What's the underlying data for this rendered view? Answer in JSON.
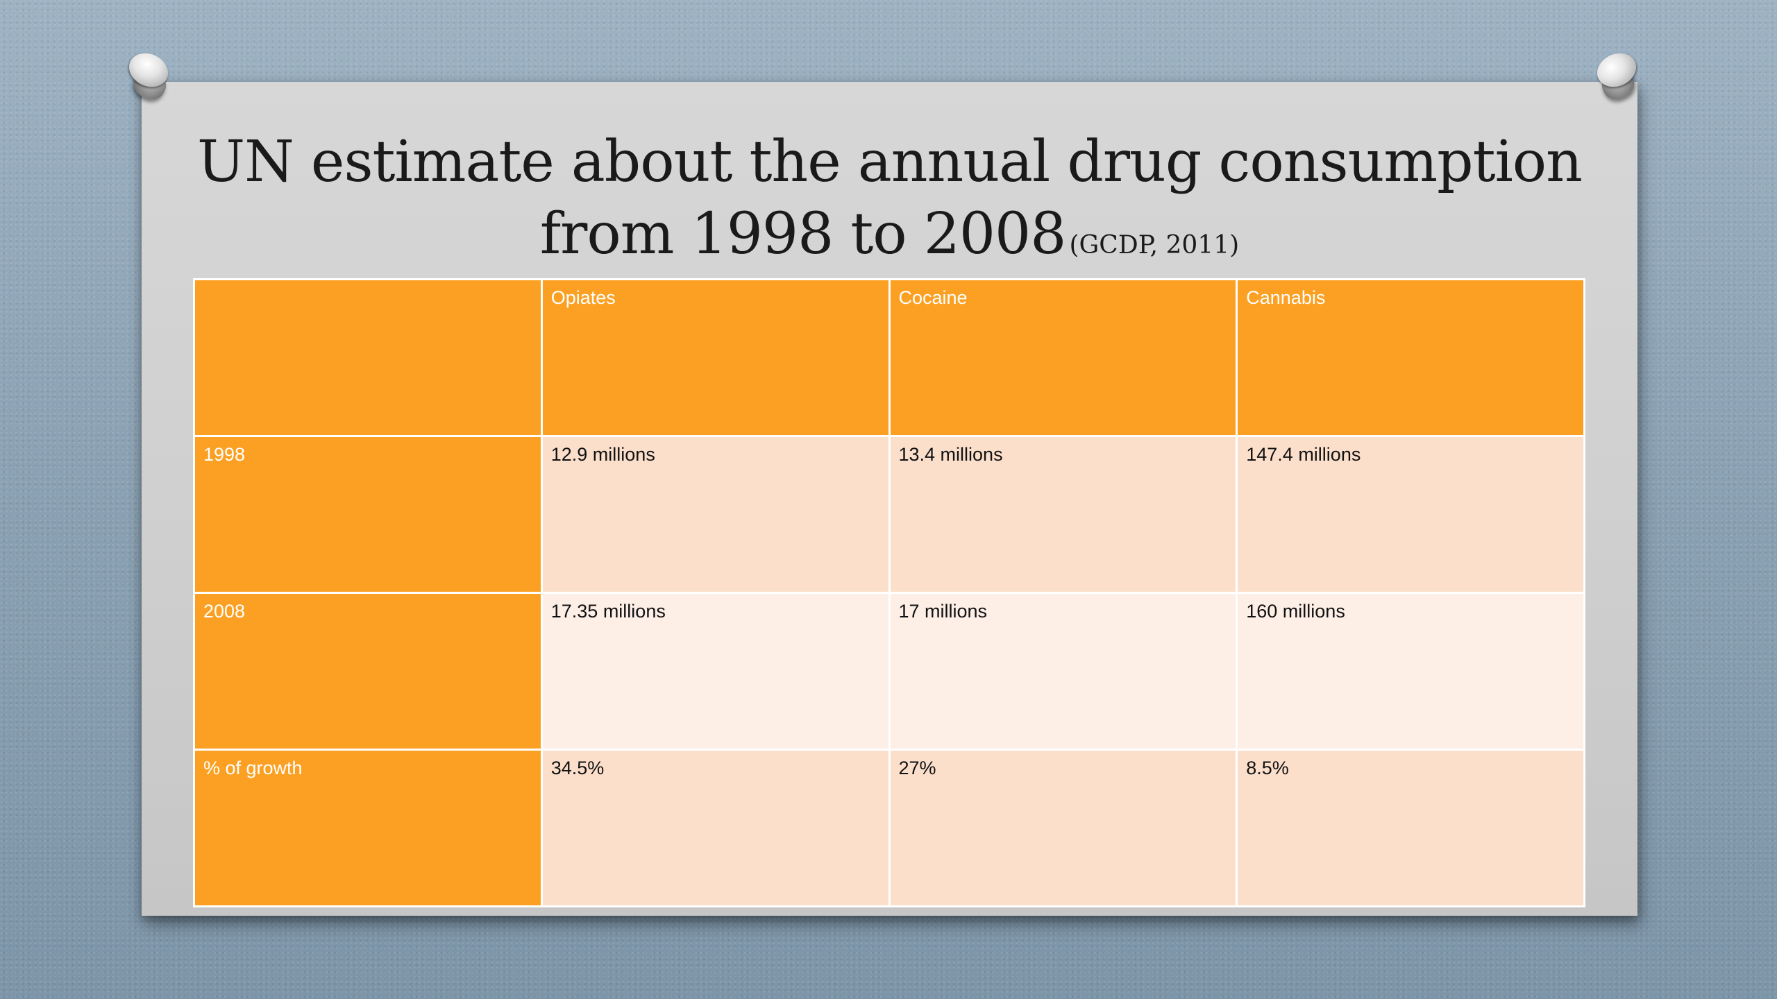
{
  "title": {
    "main_line1": "UN estimate about the annual drug consumption",
    "main_line2": "from 1998 to 2008",
    "source": "(GCDP, 2011)"
  },
  "table": {
    "columns": [
      "",
      "Opiates",
      "Cocaine",
      "Cannabis"
    ],
    "rows": [
      {
        "label": "1998",
        "values": [
          "12.9 millions",
          "13.4 millions",
          "147.4 millions"
        ]
      },
      {
        "label": "2008",
        "values": [
          "17.35 millions",
          "17 millions",
          "160 millions"
        ]
      },
      {
        "label": "% of growth",
        "values": [
          "34.5%",
          "27%",
          "8.5%"
        ]
      }
    ]
  },
  "colors": {
    "header_orange": "#fba022",
    "row_tint_dark": "#fbdfcb",
    "row_tint_light": "#fdeee6",
    "paper": "#d2d2d2",
    "background": "#8fa6b8"
  },
  "icons": [
    "pushpin-icon",
    "pushpin-icon"
  ]
}
